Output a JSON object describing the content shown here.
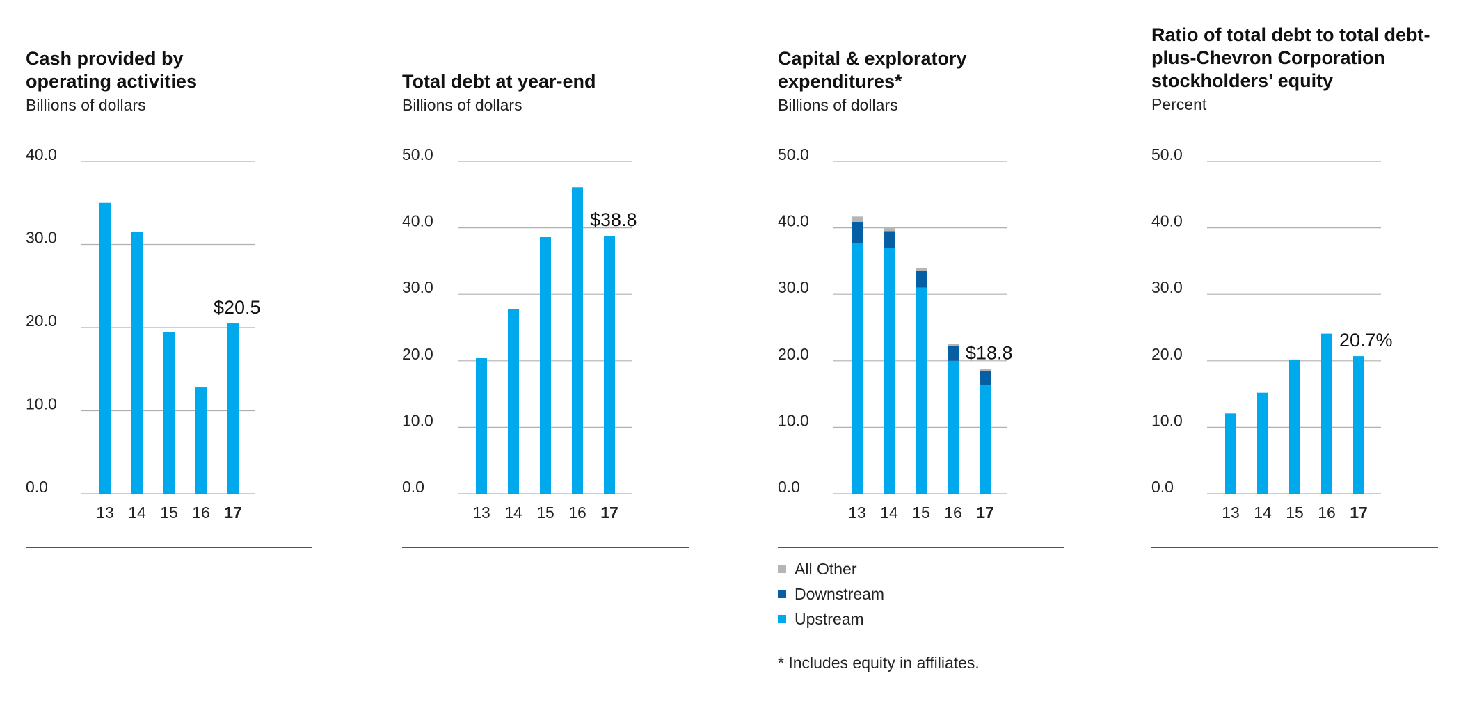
{
  "colors": {
    "upstream": "#00a9ec",
    "downstream": "#065ea3",
    "all_other": "#b5b5b5",
    "grid": "#b0b0b0",
    "axis_text": "#222222"
  },
  "chart_data": [
    {
      "type": "bar",
      "title": "Cash provided by operating activities",
      "subtitle": "Billions of dollars",
      "categories": [
        "13",
        "14",
        "15",
        "16",
        "17"
      ],
      "highlight_category": "17",
      "values": [
        35.0,
        31.5,
        19.5,
        12.8,
        20.5
      ],
      "yticks": [
        "0.0",
        "10.0",
        "20.0",
        "30.0",
        "40.0"
      ],
      "ylim": [
        0,
        40
      ],
      "annotation": "$20.5",
      "xlabel": "",
      "ylabel": ""
    },
    {
      "type": "bar",
      "title": "Total debt at year-end",
      "subtitle": "Billions of dollars",
      "categories": [
        "13",
        "14",
        "15",
        "16",
        "17"
      ],
      "highlight_category": "17",
      "values": [
        20.4,
        27.8,
        38.6,
        46.1,
        38.8
      ],
      "yticks": [
        "0.0",
        "10.0",
        "20.0",
        "30.0",
        "40.0",
        "50.0"
      ],
      "ylim": [
        0,
        50
      ],
      "annotation": "$38.8",
      "xlabel": "",
      "ylabel": ""
    },
    {
      "type": "bar",
      "stacked": true,
      "title": "Capital & exploratory expenditures*",
      "subtitle": "Billions of dollars",
      "categories": [
        "13",
        "14",
        "15",
        "16",
        "17"
      ],
      "highlight_category": "17",
      "series": [
        {
          "name": "Upstream",
          "color_key": "upstream",
          "values": [
            37.7,
            37.0,
            31.0,
            20.0,
            16.3
          ]
        },
        {
          "name": "Downstream",
          "color_key": "downstream",
          "values": [
            3.2,
            2.5,
            2.5,
            2.2,
            2.2
          ]
        },
        {
          "name": "All Other",
          "color_key": "all_other",
          "values": [
            0.8,
            0.6,
            0.5,
            0.3,
            0.3
          ]
        }
      ],
      "legend": [
        "All Other",
        "Downstream",
        "Upstream"
      ],
      "yticks": [
        "0.0",
        "10.0",
        "20.0",
        "30.0",
        "40.0",
        "50.0"
      ],
      "ylim": [
        0,
        50
      ],
      "annotation": "$18.8",
      "footnote": "* Includes equity in affiliates.",
      "xlabel": "",
      "ylabel": ""
    },
    {
      "type": "bar",
      "title": "Ratio of total debt to total debt-plus-Chevron Corporation stockholders’ equity",
      "subtitle": "Percent",
      "categories": [
        "13",
        "14",
        "15",
        "16",
        "17"
      ],
      "highlight_category": "17",
      "values": [
        12.1,
        15.2,
        20.2,
        24.1,
        20.7
      ],
      "yticks": [
        "0.0",
        "10.0",
        "20.0",
        "30.0",
        "40.0",
        "50.0"
      ],
      "ylim": [
        0,
        50
      ],
      "annotation": "20.7%",
      "xlabel": "",
      "ylabel": ""
    }
  ]
}
